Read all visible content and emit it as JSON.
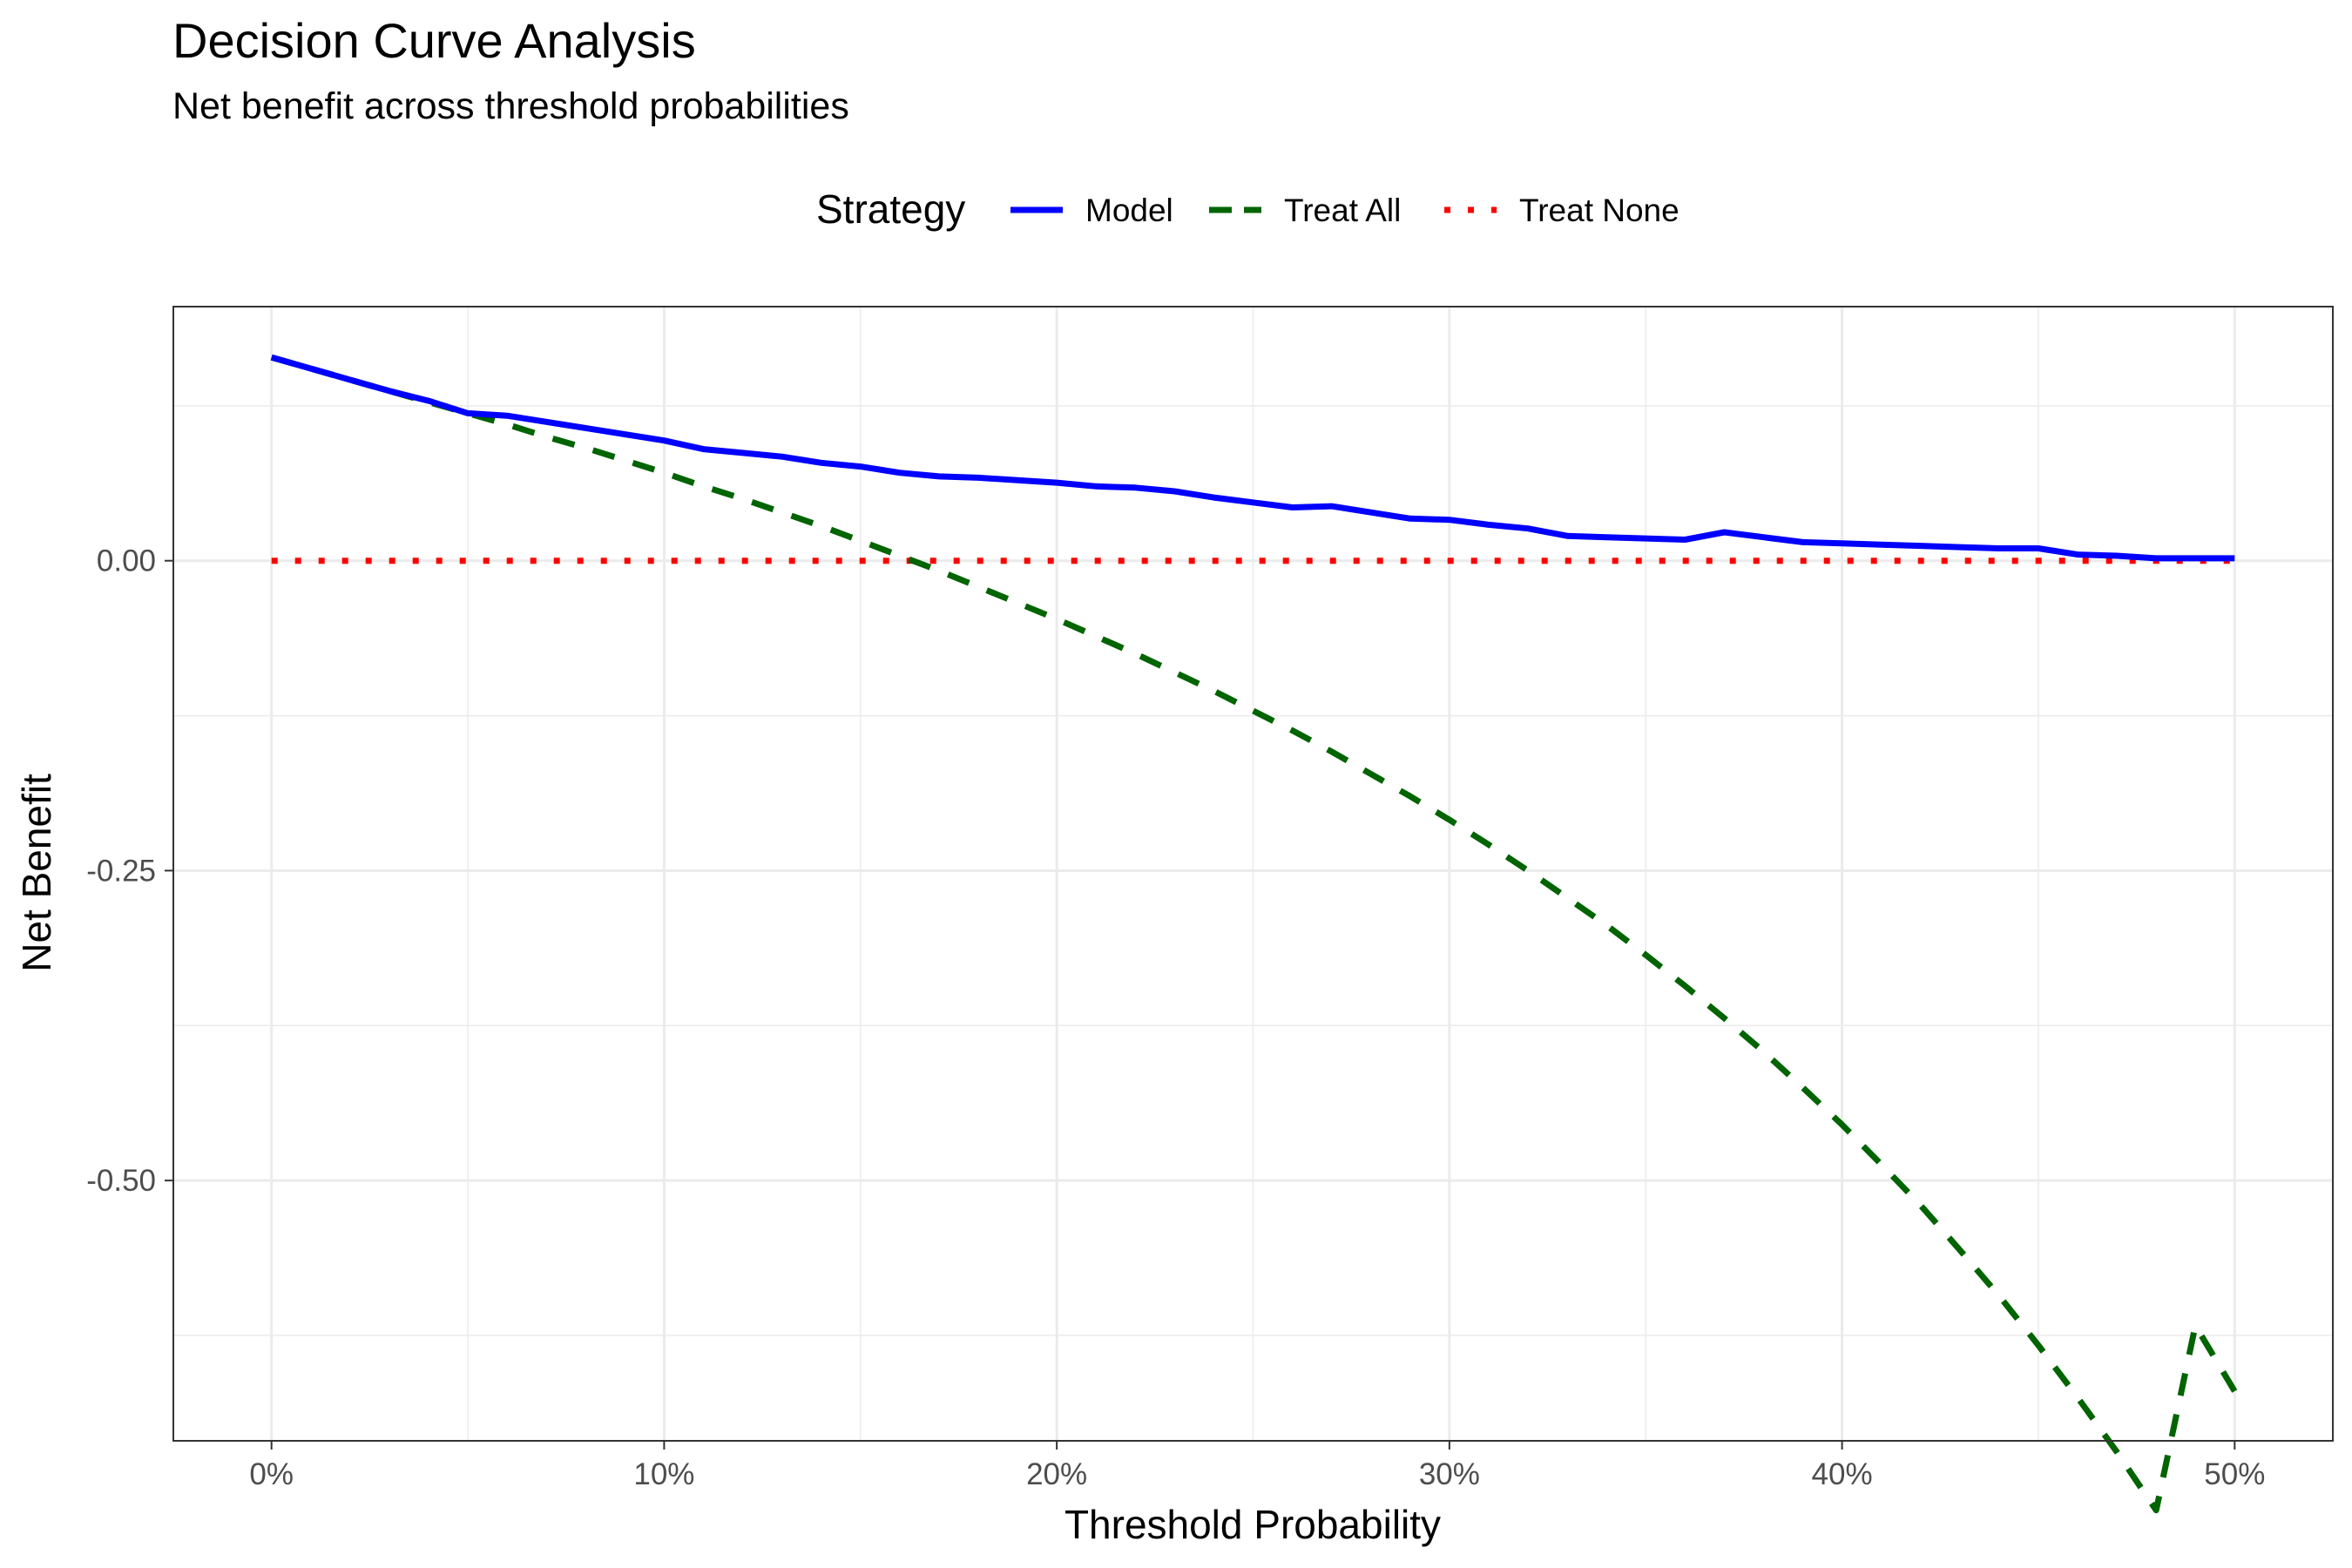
{
  "chart_data": {
    "type": "line",
    "title": "Decision Curve Analysis",
    "subtitle": "Net benefit across threshold probabilities",
    "xlabel": "Threshold Probability",
    "ylabel": "Net Benefit",
    "xlim": [
      -0.025,
      0.525
    ],
    "ylim": [
      -0.71,
      0.205
    ],
    "x_ticks": [
      {
        "value": 0.0,
        "label": "0%"
      },
      {
        "value": 0.1,
        "label": "10%"
      },
      {
        "value": 0.2,
        "label": "20%"
      },
      {
        "value": 0.3,
        "label": "30%"
      },
      {
        "value": 0.4,
        "label": "40%"
      },
      {
        "value": 0.5,
        "label": "50%"
      }
    ],
    "y_ticks": [
      {
        "value": 0.0,
        "label": "0.00"
      },
      {
        "value": -0.25,
        "label": "-0.25"
      },
      {
        "value": -0.5,
        "label": "-0.50"
      }
    ],
    "grid": true,
    "legend": {
      "title": "Strategy",
      "position": "top"
    },
    "x": [
      0.0,
      0.01,
      0.02,
      0.03,
      0.04,
      0.05,
      0.06,
      0.07,
      0.08,
      0.09,
      0.1,
      0.11,
      0.12,
      0.13,
      0.14,
      0.15,
      0.16,
      0.17,
      0.18,
      0.19,
      0.2,
      0.21,
      0.22,
      0.23,
      0.24,
      0.25,
      0.26,
      0.27,
      0.28,
      0.29,
      0.3,
      0.31,
      0.32,
      0.33,
      0.34,
      0.35,
      0.36,
      0.37,
      0.38,
      0.39,
      0.4,
      0.41,
      0.42,
      0.43,
      0.44,
      0.45,
      0.46,
      0.47,
      0.48,
      0.49,
      0.5
    ],
    "series": [
      {
        "name": "Model",
        "color": "#0000ff",
        "dash": "solid",
        "values": [
          0.164,
          0.155,
          0.146,
          0.137,
          0.129,
          0.119,
          0.117,
          0.112,
          0.107,
          0.102,
          0.097,
          0.09,
          0.087,
          0.084,
          0.079,
          0.076,
          0.071,
          0.068,
          0.067,
          0.065,
          0.063,
          0.06,
          0.059,
          0.056,
          0.051,
          0.047,
          0.043,
          0.044,
          0.039,
          0.034,
          0.033,
          0.029,
          0.026,
          0.02,
          0.019,
          0.018,
          0.017,
          0.023,
          0.019,
          0.015,
          0.014,
          0.013,
          0.012,
          0.011,
          0.01,
          0.01,
          0.005,
          0.004,
          0.002,
          0.002,
          0.002
        ]
      },
      {
        "name": "Treat All",
        "color": "#006400",
        "dash": "dashed",
        "values": [
          0.164,
          0.155,
          0.146,
          0.137,
          0.128,
          0.119,
          0.11,
          0.1,
          0.091,
          0.081,
          0.071,
          0.06,
          0.05,
          0.039,
          0.028,
          0.016,
          0.004,
          -0.008,
          -0.021,
          -0.034,
          -0.047,
          -0.061,
          -0.075,
          -0.09,
          -0.105,
          -0.121,
          -0.137,
          -0.154,
          -0.172,
          -0.19,
          -0.209,
          -0.229,
          -0.25,
          -0.272,
          -0.294,
          -0.318,
          -0.343,
          -0.369,
          -0.396,
          -0.425,
          -0.455,
          -0.487,
          -0.52,
          -0.556,
          -0.593,
          -0.633,
          -0.675,
          -0.719,
          -0.766,
          -0.617,
          -0.67
        ]
      },
      {
        "name": "Treat None",
        "color": "#ff0000",
        "dash": "dotted",
        "values": [
          0,
          0,
          0,
          0,
          0,
          0,
          0,
          0,
          0,
          0,
          0,
          0,
          0,
          0,
          0,
          0,
          0,
          0,
          0,
          0,
          0,
          0,
          0,
          0,
          0,
          0,
          0,
          0,
          0,
          0,
          0,
          0,
          0,
          0,
          0,
          0,
          0,
          0,
          0,
          0,
          0,
          0,
          0,
          0,
          0,
          0,
          0,
          0,
          0,
          0,
          0
        ]
      }
    ]
  }
}
